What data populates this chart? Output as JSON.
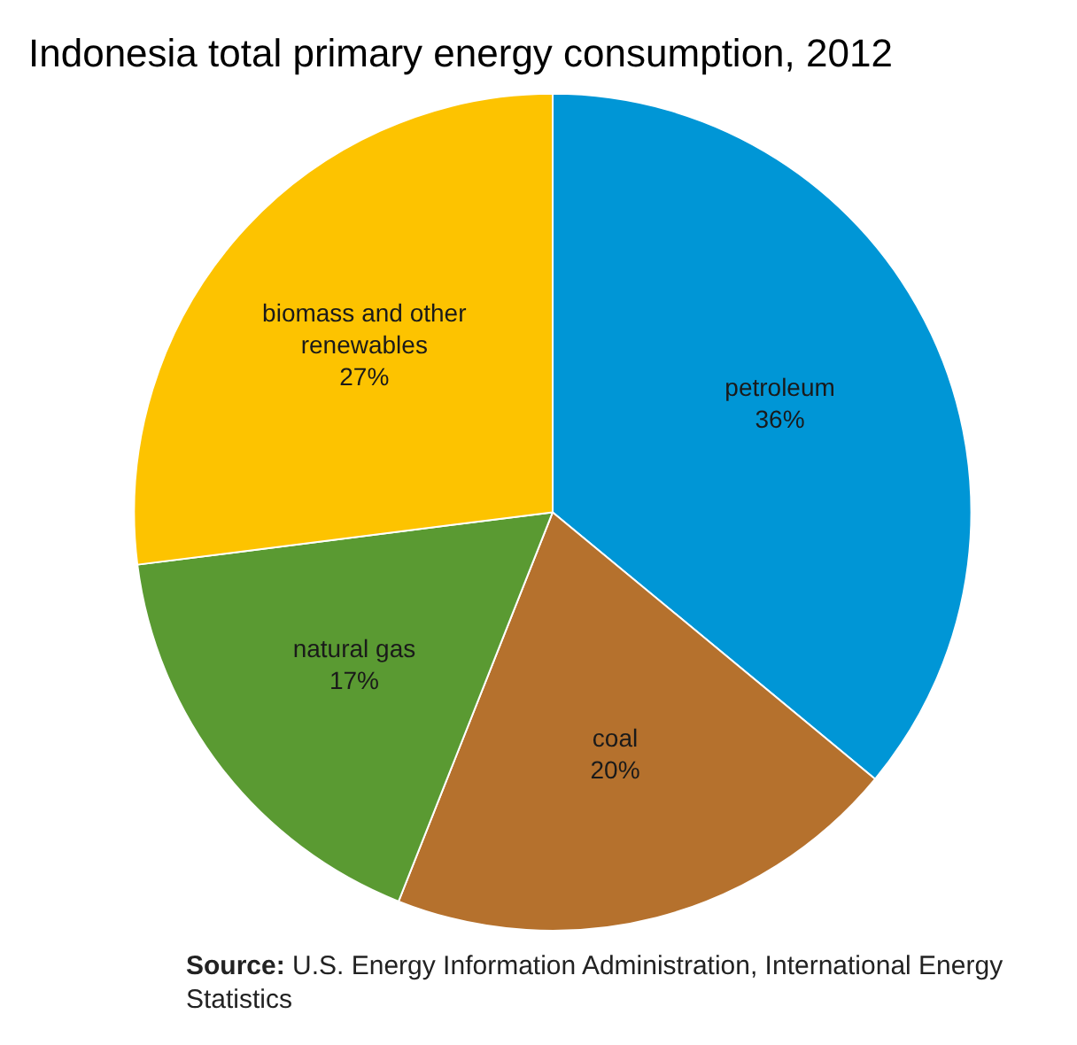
{
  "chart_data": {
    "type": "pie",
    "title": "Indonesia total primary energy consumption, 2012",
    "categories": [
      "petroleum",
      "coal",
      "natural gas",
      "biomass and other renewables"
    ],
    "values": [
      36,
      20,
      17,
      27
    ],
    "colors": [
      "#0096d6",
      "#b5712d",
      "#5a9a32",
      "#fdc300"
    ],
    "value_labels": [
      "36%",
      "20%",
      "17%",
      "27%"
    ],
    "legend": false,
    "annotations": [
      "Source: U.S. Energy Information Administration, International Energy Statistics"
    ]
  }
}
